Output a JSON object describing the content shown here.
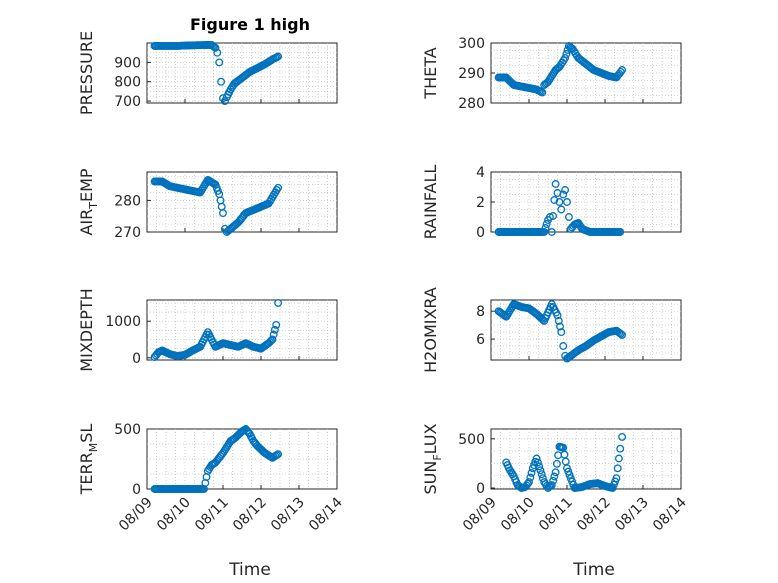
{
  "figure": {
    "title": "Figure 1 high",
    "xlabel": "Time"
  },
  "style": {
    "marker_color": "#0072BD",
    "axis_color": "#262626",
    "grid_color": "#c8c8c8"
  },
  "chart_data": [
    {
      "type": "scatter",
      "ylabel": "PRESSURE",
      "title": "Figure 1 high",
      "grid": true,
      "xlim": [
        "08/09",
        "08/14"
      ],
      "ylim": [
        690,
        1000
      ],
      "yticks": [
        "900",
        "800",
        "700"
      ],
      "ytick_values": [
        900,
        800,
        700
      ],
      "x": [
        0.2,
        0.8,
        1.2,
        1.7,
        1.8,
        1.85,
        1.9,
        1.95,
        2.0,
        2.05,
        2.1,
        2.2,
        2.3,
        2.5,
        2.7,
        2.9,
        3.1,
        3.3,
        3.45
      ],
      "y": [
        985,
        985,
        988,
        990,
        975,
        950,
        900,
        800,
        715,
        700,
        720,
        760,
        790,
        820,
        850,
        870,
        890,
        915,
        930
      ]
    },
    {
      "type": "scatter",
      "ylabel": "THETA",
      "grid": true,
      "xlim": [
        "08/09",
        "08/14"
      ],
      "ylim": [
        280,
        300
      ],
      "yticks": [
        "300",
        "290",
        "280"
      ],
      "ytick_values": [
        300,
        290,
        280
      ],
      "x": [
        0.2,
        0.4,
        0.6,
        0.8,
        1.0,
        1.2,
        1.35,
        1.4,
        1.5,
        1.6,
        1.7,
        1.8,
        1.95,
        2.05,
        2.15,
        2.3,
        2.5,
        2.7,
        2.9,
        3.1,
        3.3,
        3.45
      ],
      "y": [
        288.5,
        288.5,
        286,
        285.5,
        285,
        284.5,
        283.5,
        286,
        287,
        289,
        291,
        292,
        295,
        299,
        298,
        295,
        293,
        291,
        290,
        289,
        288.5,
        291
      ]
    },
    {
      "type": "scatter",
      "ylabel": "AIR_TEMP",
      "grid": true,
      "xlim": [
        "08/09",
        "08/14"
      ],
      "ylim": [
        270,
        289
      ],
      "yticks": [
        "280",
        "270"
      ],
      "ytick_values": [
        280,
        270
      ],
      "x": [
        0.2,
        0.4,
        0.6,
        0.8,
        1.0,
        1.2,
        1.4,
        1.6,
        1.8,
        1.9,
        2.0,
        2.05,
        2.1,
        2.2,
        2.4,
        2.6,
        2.8,
        3.0,
        3.2,
        3.45
      ],
      "y": [
        286,
        286,
        284.5,
        284,
        283.5,
        283,
        282.5,
        286.5,
        285,
        282,
        276,
        271,
        270,
        271,
        273,
        276,
        277,
        278,
        279,
        284
      ]
    },
    {
      "type": "scatter",
      "ylabel": "RAINFALL",
      "grid": true,
      "xlim": [
        "08/09",
        "08/14"
      ],
      "ylim": [
        0,
        4
      ],
      "yticks": [
        "4",
        "2",
        "0"
      ],
      "ytick_values": [
        4,
        2,
        0
      ],
      "x": [
        0.2,
        0.6,
        1.0,
        1.4,
        1.5,
        1.55,
        1.6,
        1.7,
        1.75,
        1.8,
        1.85,
        1.9,
        1.95,
        2.0,
        2.05,
        2.1,
        2.2,
        2.3,
        2.4,
        2.6,
        2.8,
        3.0,
        3.4
      ],
      "y": [
        0,
        0,
        0,
        0,
        0.8,
        1.0,
        0.0,
        3.2,
        2.6,
        2.0,
        1.5,
        2.5,
        2.8,
        2.0,
        1.0,
        0.2,
        0.5,
        0.6,
        0.2,
        0,
        0,
        0,
        0
      ]
    },
    {
      "type": "scatter",
      "ylabel": "MIXDEPTH",
      "grid": true,
      "xlim": [
        "08/09",
        "08/14"
      ],
      "ylim": [
        -60,
        1580
      ],
      "yticks": [
        "1000",
        "0"
      ],
      "ytick_values": [
        1000,
        0
      ],
      "x": [
        0.2,
        0.3,
        0.4,
        0.6,
        0.8,
        1.0,
        1.2,
        1.4,
        1.6,
        1.8,
        2.0,
        2.2,
        2.4,
        2.6,
        2.8,
        3.0,
        3.2,
        3.3,
        3.4,
        3.45
      ],
      "y": [
        20,
        150,
        200,
        100,
        50,
        80,
        200,
        300,
        700,
        300,
        400,
        350,
        300,
        400,
        300,
        250,
        400,
        500,
        900,
        1500
      ]
    },
    {
      "type": "scatter",
      "ylabel": "H2OMIXRA",
      "grid": true,
      "xlim": [
        "08/09",
        "08/14"
      ],
      "ylim": [
        4.5,
        8.8
      ],
      "yticks": [
        "8",
        "6"
      ],
      "ytick_values": [
        8,
        6
      ],
      "x": [
        0.2,
        0.4,
        0.6,
        0.8,
        1.0,
        1.2,
        1.4,
        1.6,
        1.75,
        1.85,
        1.9,
        1.95,
        2.0,
        2.1,
        2.3,
        2.5,
        2.7,
        2.9,
        3.1,
        3.3,
        3.45
      ],
      "y": [
        8,
        7.6,
        8.5,
        8.3,
        8.2,
        7.8,
        7.3,
        8.5,
        7.7,
        6.5,
        5.5,
        4.8,
        4.6,
        4.8,
        5.2,
        5.5,
        5.9,
        6.2,
        6.5,
        6.6,
        6.3
      ]
    },
    {
      "type": "scatter",
      "ylabel": "TERR_MSL",
      "grid": true,
      "xlim": [
        "08/09",
        "08/14"
      ],
      "ylim": [
        0,
        500
      ],
      "yticks": [
        "500",
        "0"
      ],
      "ytick_values": [
        500,
        0
      ],
      "x": [
        0.2,
        0.5,
        0.8,
        1.1,
        1.5,
        1.6,
        1.7,
        1.8,
        1.9,
        2.0,
        2.1,
        2.2,
        2.3,
        2.4,
        2.5,
        2.6,
        2.7,
        2.8,
        2.9,
        3.0,
        3.1,
        3.2,
        3.3,
        3.45
      ],
      "y": [
        0,
        0,
        0,
        0,
        0,
        150,
        200,
        220,
        260,
        300,
        350,
        400,
        420,
        450,
        480,
        500,
        460,
        400,
        360,
        330,
        300,
        280,
        260,
        290
      ]
    },
    {
      "type": "scatter",
      "ylabel": "SUN_FLUX",
      "grid": true,
      "xlim": [
        "08/09",
        "08/14"
      ],
      "ylim": [
        -10,
        600
      ],
      "yticks": [
        "500",
        "0"
      ],
      "ytick_values": [
        500,
        0
      ],
      "x": [
        0.4,
        0.5,
        0.6,
        0.7,
        0.8,
        0.9,
        1.0,
        1.1,
        1.2,
        1.3,
        1.4,
        1.5,
        1.6,
        1.7,
        1.8,
        1.9,
        2.0,
        2.2,
        2.4,
        2.6,
        2.8,
        3.0,
        3.2,
        3.3,
        3.4,
        3.45
      ],
      "y": [
        260,
        180,
        120,
        30,
        0,
        10,
        60,
        200,
        300,
        180,
        60,
        0,
        30,
        160,
        420,
        410,
        200,
        0,
        10,
        40,
        50,
        20,
        0,
        100,
        400,
        520
      ]
    }
  ],
  "xticks": [
    "08/09",
    "08/10",
    "08/11",
    "08/12",
    "08/13",
    "08/14"
  ]
}
